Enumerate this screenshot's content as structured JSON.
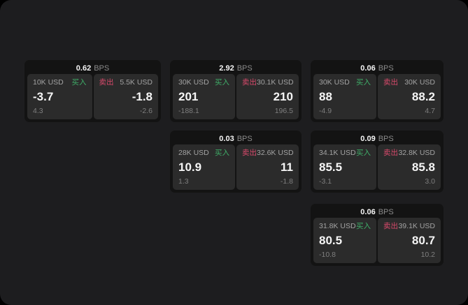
{
  "theme": {
    "page_bg": "#1d1d1f",
    "card_bg": "#131313",
    "panel_bg": "#2b2b2b",
    "text_primary": "#f5f5f5",
    "text_muted": "#7f7f7f",
    "buy_green": "#3fae68",
    "sell_red": "#d84a6b"
  },
  "labels": {
    "bps": "BPS",
    "buy": "买入",
    "sell": "卖出"
  },
  "cards": [
    {
      "bps": "0.62",
      "buy": {
        "size": "10K USD",
        "value": "-3.7",
        "delta": "4.3"
      },
      "sell": {
        "size": "5.5K USD",
        "value": "-1.8",
        "delta": "-2.6"
      }
    },
    {
      "bps": "2.92",
      "buy": {
        "size": "30K USD",
        "value": "201",
        "delta": "-188.1"
      },
      "sell": {
        "size": "30.1K USD",
        "value": "210",
        "delta": "196.5"
      }
    },
    {
      "bps": "0.06",
      "buy": {
        "size": "30K USD",
        "value": "88",
        "delta": "-4.9"
      },
      "sell": {
        "size": "30K USD",
        "value": "88.2",
        "delta": "4.7"
      }
    },
    {
      "bps": "0.03",
      "buy": {
        "size": "28K USD",
        "value": "10.9",
        "delta": "1.3"
      },
      "sell": {
        "size": "32.6K USD",
        "value": "11",
        "delta": "-1.8"
      }
    },
    {
      "bps": "0.09",
      "buy": {
        "size": "34.1K USD",
        "value": "85.5",
        "delta": "-3.1"
      },
      "sell": {
        "size": "32.8K USD",
        "value": "85.8",
        "delta": "3.0"
      }
    },
    {
      "bps": "0.06",
      "buy": {
        "size": "31.8K USD",
        "value": "80.5",
        "delta": "-10.8"
      },
      "sell": {
        "size": "39.1K USD",
        "value": "80.7",
        "delta": "10.2"
      }
    }
  ]
}
